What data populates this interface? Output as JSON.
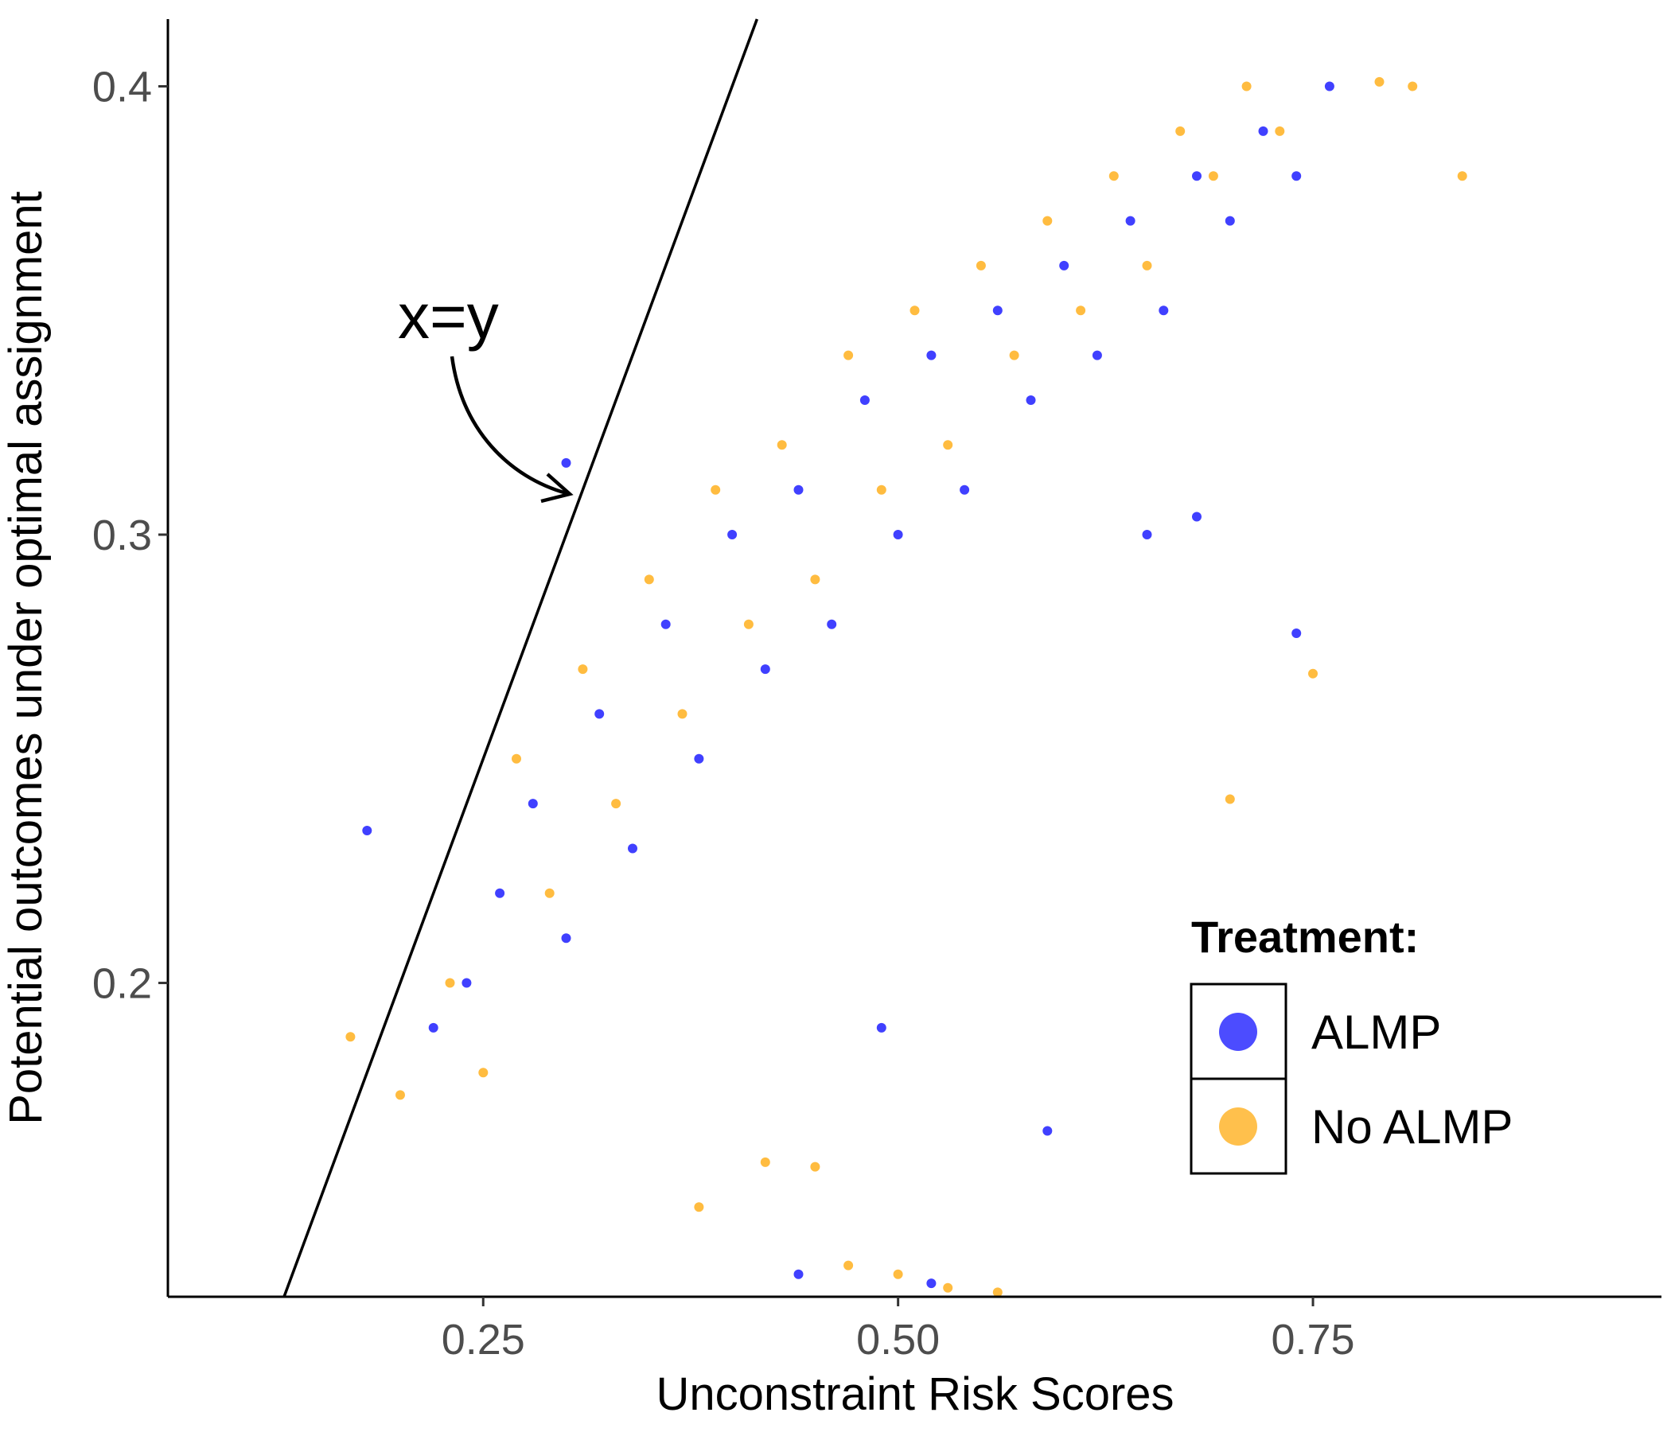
{
  "chart_data": {
    "type": "scatter",
    "title": "",
    "xlabel": "Unconstraint Risk Scores",
    "ylabel": "Potential outcomes under optimal assignment",
    "xlim": [
      0.06,
      0.96
    ],
    "ylim": [
      0.13,
      0.415
    ],
    "x_ticks": [
      0.25,
      0.5,
      0.75
    ],
    "x_tick_labels": [
      "0.25",
      "0.50",
      "0.75"
    ],
    "y_ticks": [
      0.2,
      0.3,
      0.4
    ],
    "y_tick_labels": [
      "0.2",
      "0.3",
      "0.4"
    ],
    "grid": false,
    "reference_line": {
      "slope": 1,
      "intercept": 0,
      "label": "x=y"
    },
    "legend": {
      "title": "Treatment:",
      "position": "bottom-right",
      "entries": [
        {
          "label": "ALMP",
          "color": "#0000ff"
        },
        {
          "label": "No ALMP",
          "color": "#ffa500"
        }
      ]
    },
    "series": [
      {
        "name": "ALMP",
        "color": "#0000ff",
        "points": [
          [
            0.18,
            0.234
          ],
          [
            0.22,
            0.19
          ],
          [
            0.24,
            0.2
          ],
          [
            0.26,
            0.22
          ],
          [
            0.28,
            0.24
          ],
          [
            0.3,
            0.21
          ],
          [
            0.32,
            0.26
          ],
          [
            0.34,
            0.23
          ],
          [
            0.36,
            0.28
          ],
          [
            0.38,
            0.25
          ],
          [
            0.4,
            0.3
          ],
          [
            0.42,
            0.27
          ],
          [
            0.44,
            0.31
          ],
          [
            0.46,
            0.28
          ],
          [
            0.48,
            0.33
          ],
          [
            0.5,
            0.3
          ],
          [
            0.52,
            0.34
          ],
          [
            0.54,
            0.31
          ],
          [
            0.56,
            0.35
          ],
          [
            0.58,
            0.33
          ],
          [
            0.6,
            0.36
          ],
          [
            0.62,
            0.34
          ],
          [
            0.64,
            0.37
          ],
          [
            0.66,
            0.35
          ],
          [
            0.68,
            0.38
          ],
          [
            0.7,
            0.37
          ],
          [
            0.72,
            0.39
          ],
          [
            0.74,
            0.38
          ],
          [
            0.76,
            0.4
          ],
          [
            0.68,
            0.304
          ],
          [
            0.74,
            0.278
          ],
          [
            0.65,
            0.3
          ],
          [
            0.49,
            0.19
          ],
          [
            0.59,
            0.167
          ],
          [
            0.3,
            0.316
          ],
          [
            0.44,
            0.135
          ],
          [
            0.52,
            0.133
          ]
        ]
      },
      {
        "name": "No ALMP",
        "color": "#ffa500",
        "points": [
          [
            0.17,
            0.188
          ],
          [
            0.2,
            0.175
          ],
          [
            0.23,
            0.2
          ],
          [
            0.25,
            0.18
          ],
          [
            0.27,
            0.25
          ],
          [
            0.29,
            0.22
          ],
          [
            0.31,
            0.27
          ],
          [
            0.33,
            0.24
          ],
          [
            0.35,
            0.29
          ],
          [
            0.37,
            0.26
          ],
          [
            0.39,
            0.31
          ],
          [
            0.41,
            0.28
          ],
          [
            0.43,
            0.32
          ],
          [
            0.45,
            0.29
          ],
          [
            0.47,
            0.34
          ],
          [
            0.49,
            0.31
          ],
          [
            0.51,
            0.35
          ],
          [
            0.53,
            0.32
          ],
          [
            0.55,
            0.36
          ],
          [
            0.57,
            0.34
          ],
          [
            0.59,
            0.37
          ],
          [
            0.61,
            0.35
          ],
          [
            0.63,
            0.38
          ],
          [
            0.65,
            0.36
          ],
          [
            0.67,
            0.39
          ],
          [
            0.69,
            0.38
          ],
          [
            0.71,
            0.4
          ],
          [
            0.73,
            0.39
          ],
          [
            0.79,
            0.401
          ],
          [
            0.81,
            0.4
          ],
          [
            0.84,
            0.38
          ],
          [
            0.7,
            0.241
          ],
          [
            0.75,
            0.269
          ],
          [
            0.47,
            0.137
          ],
          [
            0.5,
            0.135
          ],
          [
            0.53,
            0.132
          ],
          [
            0.56,
            0.131
          ],
          [
            0.45,
            0.159
          ],
          [
            0.38,
            0.15
          ],
          [
            0.42,
            0.16
          ]
        ]
      }
    ]
  }
}
